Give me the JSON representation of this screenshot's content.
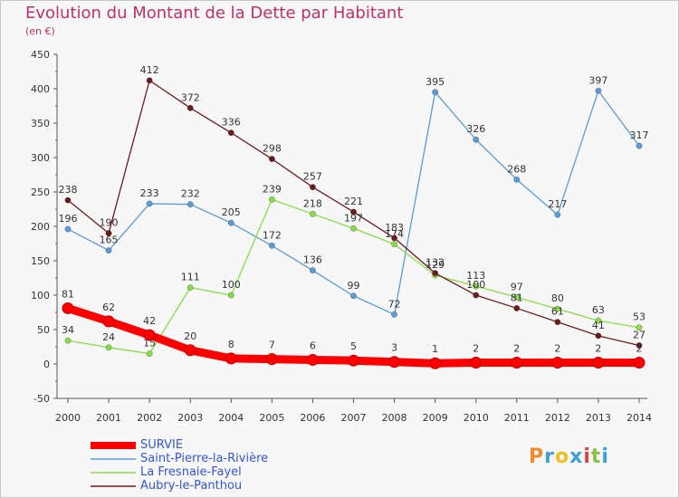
{
  "chart_data": {
    "type": "line",
    "title": "Evolution du Montant de la Dette par Habitant",
    "subtitle": "(en €)",
    "x": [
      "2000",
      "2001",
      "2002",
      "2003",
      "2004",
      "2005",
      "2006",
      "2007",
      "2008",
      "2009",
      "2010",
      "2011",
      "2012",
      "2013",
      "2014"
    ],
    "ylim": [
      -50,
      450
    ],
    "yticks": [
      -50,
      0,
      50,
      100,
      150,
      200,
      250,
      300,
      350,
      400,
      450
    ],
    "grid": false,
    "legend_position": "bottom-left",
    "series": [
      {
        "name": "SURVIE",
        "color": "#ff0000",
        "values": [
          81,
          62,
          42,
          20,
          8,
          7,
          6,
          5,
          3,
          1,
          2,
          2,
          2,
          2,
          2
        ]
      },
      {
        "name": "Saint-Pierre-la-Rivière",
        "color": "#5a9bd5",
        "values": [
          196,
          165,
          233,
          232,
          205,
          172,
          136,
          99,
          72,
          395,
          326,
          268,
          217,
          397,
          317
        ]
      },
      {
        "name": "La Fresnaie-Fayel",
        "color": "#88dd44",
        "values": [
          34,
          24,
          15,
          111,
          100,
          239,
          218,
          197,
          174,
          129,
          113,
          97,
          80,
          63,
          53
        ]
      },
      {
        "name": "Aubry-le-Panthou",
        "color": "#6b1a1a",
        "values": [
          238,
          190,
          412,
          372,
          336,
          298,
          257,
          221,
          183,
          132,
          100,
          81,
          61,
          41,
          27
        ]
      }
    ]
  },
  "logo": {
    "text": "Proxiti",
    "colors": [
      "#f08a2a",
      "#3aa0d8",
      "#f0c020",
      "#3aa0d8",
      "#e04040",
      "#88c040",
      "#3aa0d8"
    ]
  }
}
